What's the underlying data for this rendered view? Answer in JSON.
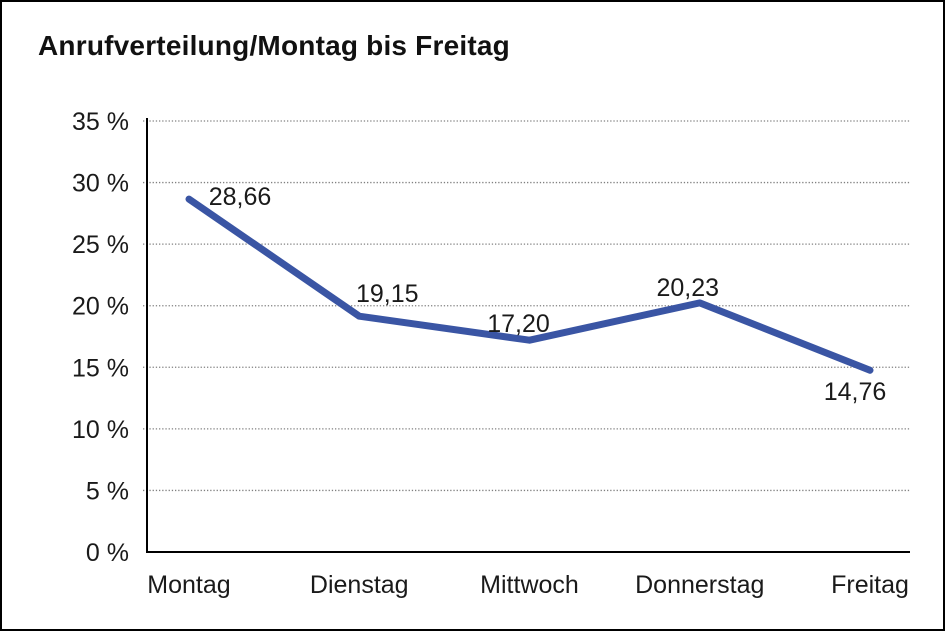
{
  "chart_data": {
    "type": "line",
    "title": "Anrufverteilung/Montag bis Freitag",
    "categories": [
      "Montag",
      "Dienstag",
      "Mittwoch",
      "Donnerstag",
      "Freitag"
    ],
    "values": [
      28.66,
      19.15,
      17.2,
      20.23,
      14.76
    ],
    "data_labels": [
      "28,66",
      "19,15",
      "17,20",
      "20,23",
      "14,76"
    ],
    "series_name": "Anrufverteilung",
    "xlabel": "",
    "ylabel": "",
    "ylim": [
      0,
      35
    ],
    "y_ticks": [
      {
        "value": 35,
        "label": "35 %"
      },
      {
        "value": 30,
        "label": "30 %"
      },
      {
        "value": 25,
        "label": "25 %"
      },
      {
        "value": 20,
        "label": "20 %"
      },
      {
        "value": 15,
        "label": "15 %"
      },
      {
        "value": 10,
        "label": "10 %"
      },
      {
        "value": 5,
        "label": "5 %"
      },
      {
        "value": 0,
        "label": "0 %"
      }
    ],
    "grid": "horizontal-dotted",
    "legend": "none",
    "colors": {
      "line": "#3A55A4",
      "text": "#1A1A1A",
      "grid": "#808080",
      "axis": "#000000",
      "background": "#FFFFFF",
      "border": "#000000"
    }
  }
}
